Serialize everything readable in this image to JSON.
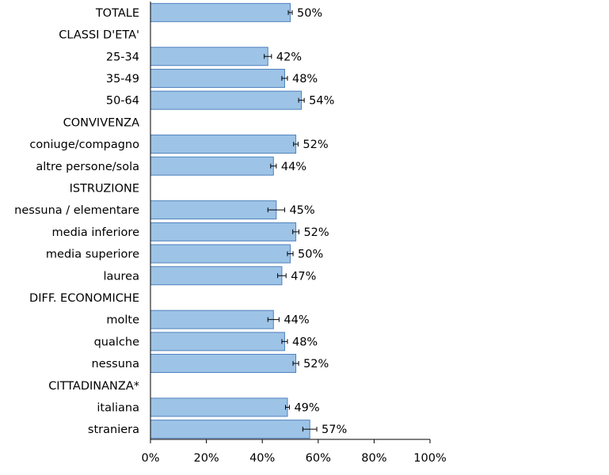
{
  "chart_data": {
    "type": "bar",
    "orientation": "horizontal",
    "rows": [
      {
        "label": "TOTALE",
        "value": 50,
        "err": 0.7,
        "value_label": "50%"
      },
      {
        "label": "CLASSI D'ETA'",
        "header": true
      },
      {
        "label": "25-34",
        "value": 42,
        "err": 1.3,
        "value_label": "42%"
      },
      {
        "label": "35-49",
        "value": 48,
        "err": 1.0,
        "value_label": "48%"
      },
      {
        "label": "50-64",
        "value": 54,
        "err": 1.0,
        "value_label": "54%"
      },
      {
        "label": "CONVIVENZA",
        "header": true
      },
      {
        "label": "coniuge/compagno",
        "value": 52,
        "err": 0.8,
        "value_label": "52%"
      },
      {
        "label": "altre persone/sola",
        "value": 44,
        "err": 1.0,
        "value_label": "44%"
      },
      {
        "label": "ISTRUZIONE",
        "header": true
      },
      {
        "label": "nessuna / elementare",
        "value": 45,
        "err": 3.0,
        "value_label": "45%"
      },
      {
        "label": "media inferiore",
        "value": 52,
        "err": 1.1,
        "value_label": "52%"
      },
      {
        "label": "media superiore",
        "value": 50,
        "err": 1.0,
        "value_label": "50%"
      },
      {
        "label": "laurea",
        "value": 47,
        "err": 1.5,
        "value_label": "47%"
      },
      {
        "label": "DIFF. ECONOMICHE",
        "header": true
      },
      {
        "label": "molte",
        "value": 44,
        "err": 2.0,
        "value_label": "44%"
      },
      {
        "label": "qualche",
        "value": 48,
        "err": 1.0,
        "value_label": "48%"
      },
      {
        "label": "nessuna",
        "value": 52,
        "err": 1.0,
        "value_label": "52%"
      },
      {
        "label": "CITTADINANZA*",
        "header": true
      },
      {
        "label": "italiana",
        "value": 49,
        "err": 0.7,
        "value_label": "49%"
      },
      {
        "label": "straniera",
        "value": 57,
        "err": 2.5,
        "value_label": "57%"
      }
    ],
    "xlim": [
      0,
      100
    ],
    "x_ticks": [
      0,
      20,
      40,
      60,
      80,
      100
    ],
    "x_tick_labels": [
      "0%",
      "20%",
      "40%",
      "60%",
      "80%",
      "100%"
    ],
    "grid": false,
    "bar_color": "#9dc3e6",
    "bar_border_color": "#4f81bd",
    "error_bar_color": "#000000",
    "axis_color": "#000000"
  }
}
